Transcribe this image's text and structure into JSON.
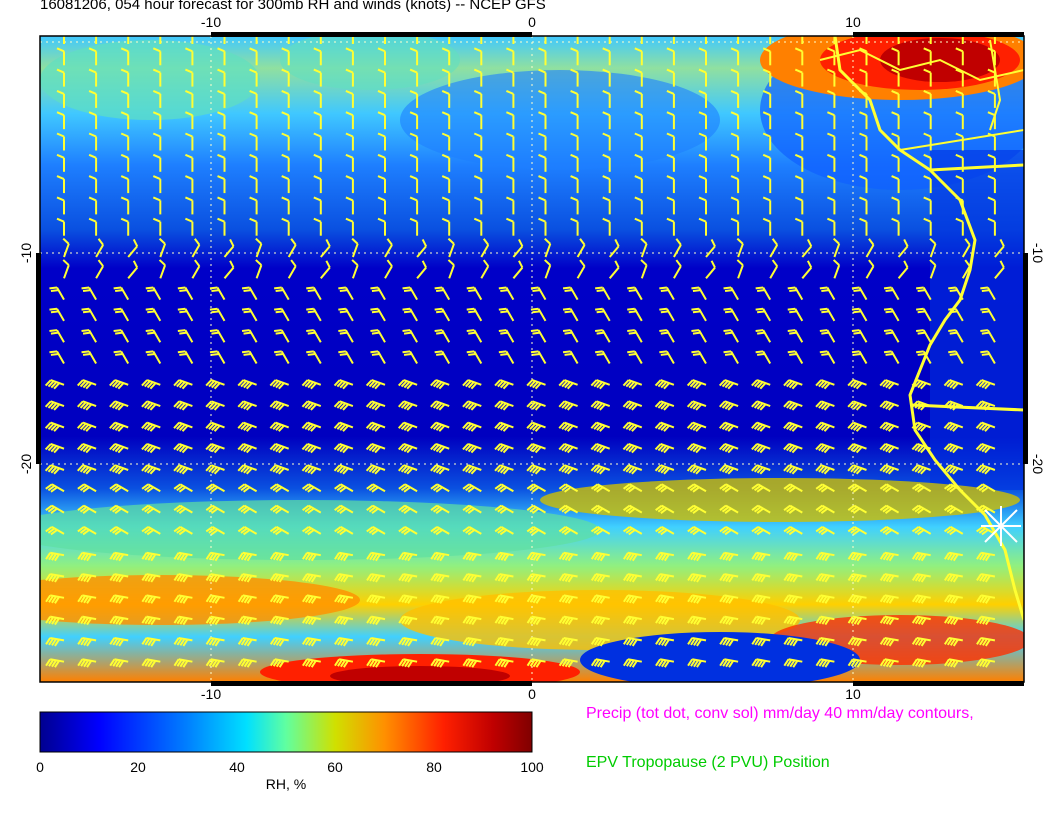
{
  "title": "16081206, 054 hour forecast for 300mb RH and winds (knots) -- NCEP GFS",
  "map": {
    "x_ticks": [
      "-10",
      "0",
      "10"
    ],
    "y_ticks": [
      "-10",
      "-20"
    ],
    "rh_colors": [
      "#00008f",
      "#0000cc",
      "#0040ff",
      "#0090ff",
      "#00d0ff",
      "#40ffd0",
      "#a0ff60",
      "#e8e000",
      "#ff9000",
      "#ff3000",
      "#c00000",
      "#800000"
    ],
    "barb_color": "#ffff33",
    "coast_color": "#ffff33"
  },
  "colorbar": {
    "label": "RH, %",
    "ticks": [
      "0",
      "20",
      "40",
      "60",
      "80",
      "100"
    ],
    "min": 0,
    "max": 100
  },
  "legend": {
    "precip": {
      "text": "Precip (tot dot, conv sol) mm/day 40 mm/day contours,",
      "color": "#ff00ff"
    },
    "epv": {
      "text": "EPV Tropopause (2 PVU) Position",
      "color": "#00cc00"
    }
  }
}
